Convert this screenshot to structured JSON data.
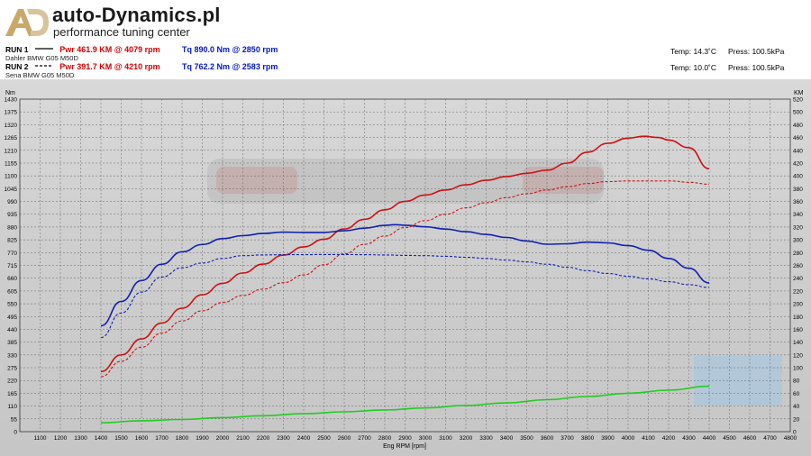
{
  "header": {
    "logo_letters": "AD",
    "brand": "auto-Dynamics.pl",
    "tagline": "performance tuning center"
  },
  "runs": [
    {
      "label": "RUN 1",
      "power": "Pwr  461.9 KM @ 4079 rpm",
      "torque": "Tq 890.0 Nm @ 2850 rpm",
      "vehicle": "Dahler  BMW G05 M50D",
      "temp": "Temp: 14.3˚C",
      "press": "Press: 100.5kPa"
    },
    {
      "label": "RUN 2",
      "power": "Pwr  391.7 KM @ 4210 rpm",
      "torque": "Tq 762.2 Nm @ 2583 rpm",
      "vehicle": "Sena  BMW G05 M50D",
      "temp": "Temp: 10.0˚C",
      "press": "Press: 100.5kPa"
    }
  ],
  "colors": {
    "power": "#cc1111",
    "torque": "#1020b0",
    "loss": "#22cc22",
    "grid": "#666666"
  },
  "chart_data": {
    "type": "line",
    "xlabel": "Eng RPM [rpm]",
    "ylabel_left": "Nm",
    "ylabel_right": "KM",
    "xlim": [
      1000,
      4800
    ],
    "x_ticks": [
      1100,
      1200,
      1300,
      1400,
      1500,
      1600,
      1700,
      1800,
      1900,
      2000,
      2100,
      2200,
      2300,
      2400,
      2500,
      2600,
      2700,
      2800,
      2900,
      3000,
      3100,
      3200,
      3300,
      3400,
      3500,
      3600,
      3700,
      3800,
      3900,
      4000,
      4100,
      4200,
      4300,
      4400,
      4500,
      4600,
      4700,
      4800
    ],
    "ylim_left": [
      0,
      1430
    ],
    "ylim_right": [
      0,
      520
    ],
    "y_ticks_left": [
      0,
      55,
      110,
      165,
      220,
      275,
      330,
      385,
      440,
      495,
      550,
      605,
      660,
      715,
      770,
      825,
      880,
      935,
      990,
      1045,
      1100,
      1155,
      1210,
      1265,
      1320,
      1375,
      1430
    ],
    "y_ticks_right": [
      0,
      20,
      40,
      60,
      80,
      100,
      120,
      140,
      160,
      180,
      200,
      220,
      240,
      260,
      280,
      300,
      320,
      340,
      360,
      380,
      400,
      420,
      440,
      460,
      480,
      500,
      520
    ],
    "series": [
      {
        "axis": "right",
        "color": "#cc1111",
        "style": "solid",
        "x": [
          1400,
          1500,
          1600,
          1700,
          1800,
          1900,
          2000,
          2100,
          2200,
          2300,
          2400,
          2500,
          2600,
          2700,
          2800,
          2900,
          3000,
          3100,
          3200,
          3300,
          3400,
          3500,
          3600,
          3700,
          3800,
          3900,
          4000,
          4079,
          4150,
          4200,
          4300,
          4400
        ],
        "y": [
          94,
          120,
          145,
          170,
          193,
          214,
          232,
          248,
          262,
          276,
          289,
          301,
          317,
          332,
          347,
          360,
          370,
          378,
          386,
          393,
          399,
          404,
          409,
          420,
          437,
          451,
          459,
          462,
          460,
          456,
          444,
          411
        ]
      },
      {
        "axis": "left",
        "color": "#1020b0",
        "style": "solid",
        "x": [
          1400,
          1500,
          1600,
          1700,
          1800,
          1900,
          2000,
          2100,
          2200,
          2300,
          2400,
          2500,
          2600,
          2700,
          2800,
          2850,
          2900,
          3000,
          3100,
          3200,
          3300,
          3400,
          3500,
          3600,
          3700,
          3800,
          3900,
          4000,
          4100,
          4200,
          4300,
          4400
        ],
        "y": [
          455,
          560,
          650,
          720,
          773,
          805,
          830,
          843,
          852,
          858,
          857,
          857,
          864,
          875,
          887,
          890,
          888,
          881,
          871,
          860,
          848,
          835,
          820,
          806,
          808,
          815,
          812,
          800,
          780,
          745,
          703,
          640
        ]
      },
      {
        "axis": "right",
        "color": "#cc1111",
        "style": "dashed",
        "x": [
          1400,
          1500,
          1600,
          1700,
          1800,
          1900,
          2000,
          2100,
          2200,
          2300,
          2400,
          2500,
          2600,
          2700,
          2800,
          2900,
          3000,
          3100,
          3200,
          3300,
          3400,
          3500,
          3600,
          3700,
          3800,
          3900,
          4000,
          4100,
          4210,
          4300,
          4400
        ],
        "y": [
          86,
          110,
          132,
          154,
          173,
          189,
          202,
          213,
          223,
          233,
          245,
          261,
          278,
          293,
          306,
          319,
          330,
          340,
          350,
          358,
          366,
          372,
          378,
          383,
          388,
          391,
          392,
          392,
          392,
          390,
          387
        ]
      },
      {
        "axis": "left",
        "color": "#1020b0",
        "style": "dashed",
        "x": [
          1400,
          1500,
          1600,
          1700,
          1800,
          1900,
          2000,
          2100,
          2200,
          2300,
          2400,
          2500,
          2583,
          2700,
          2800,
          2900,
          3000,
          3100,
          3200,
          3300,
          3400,
          3500,
          3600,
          3700,
          3800,
          3900,
          4000,
          4100,
          4200,
          4300,
          4400
        ],
        "y": [
          405,
          510,
          600,
          665,
          705,
          725,
          745,
          757,
          760,
          761,
          761,
          762,
          762,
          761,
          760,
          758,
          757,
          754,
          750,
          745,
          738,
          730,
          720,
          707,
          692,
          680,
          668,
          657,
          645,
          632,
          620
        ]
      },
      {
        "axis": "right",
        "color": "#22cc22",
        "style": "solid",
        "x": [
          1400,
          1600,
          1800,
          2000,
          2200,
          2400,
          2600,
          2800,
          3000,
          3200,
          3400,
          3600,
          3800,
          4000,
          4200,
          4400
        ],
        "y": [
          14,
          17,
          19,
          22,
          25,
          28,
          31,
          34,
          37,
          41,
          45,
          50,
          55,
          60,
          65,
          71
        ]
      }
    ]
  }
}
